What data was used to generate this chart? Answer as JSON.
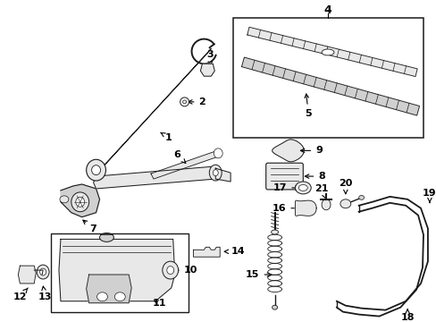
{
  "bg_color": "#ffffff",
  "fig_width": 4.89,
  "fig_height": 3.6,
  "dpi": 100,
  "line_color": "#1a1a1a",
  "part_fill": "#e8e8e8",
  "part_fill2": "#d0d0d0"
}
